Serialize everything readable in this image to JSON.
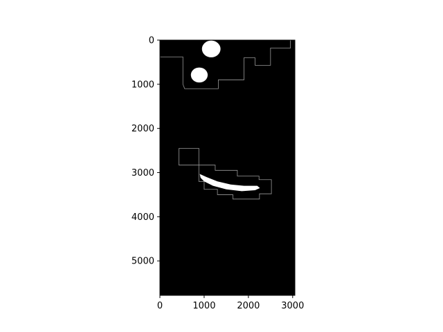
{
  "chart_data": {
    "type": "heatmap",
    "title": "",
    "xlabel": "",
    "ylabel": "",
    "xlim": [
      0,
      3050
    ],
    "ylim": [
      5780,
      0
    ],
    "x_ticks": [
      0,
      1000,
      2000,
      3000
    ],
    "y_ticks": [
      0,
      1000,
      2000,
      3000,
      4000,
      5000
    ],
    "background_color": "#000000",
    "foreground_color": "#ffffff",
    "outline_color": "#9a9a9a",
    "colormap": "gray",
    "blobs": [
      {
        "name": "round-blob-top",
        "cx": 1160,
        "cy": 200,
        "rx": 210,
        "ry": 190
      },
      {
        "name": "small-blob-upper-left",
        "cx": 890,
        "cy": 790,
        "rx": 190,
        "ry": 170
      },
      {
        "name": "elongated-blob",
        "points": [
          [
            900,
            3030
          ],
          [
            1050,
            3100
          ],
          [
            1300,
            3200
          ],
          [
            1600,
            3270
          ],
          [
            1900,
            3300
          ],
          [
            2200,
            3300
          ],
          [
            2260,
            3350
          ],
          [
            2150,
            3400
          ],
          [
            1850,
            3420
          ],
          [
            1500,
            3380
          ],
          [
            1200,
            3300
          ],
          [
            1000,
            3200
          ],
          [
            920,
            3120
          ]
        ]
      }
    ],
    "outlines": [
      {
        "name": "outline-top-region",
        "points": [
          [
            0,
            380
          ],
          [
            520,
            380
          ],
          [
            520,
            1000
          ],
          [
            560,
            1100
          ],
          [
            1320,
            1100
          ],
          [
            1320,
            900
          ],
          [
            1900,
            900
          ],
          [
            1900,
            400
          ],
          [
            2150,
            400
          ],
          [
            2150,
            570
          ],
          [
            2500,
            570
          ],
          [
            2500,
            180
          ],
          [
            2950,
            180
          ],
          [
            2950,
            0
          ]
        ]
      },
      {
        "name": "outline-bottom-region",
        "points": [
          [
            430,
            2450
          ],
          [
            880,
            2450
          ],
          [
            880,
            2830
          ],
          [
            1250,
            2830
          ],
          [
            1250,
            2950
          ],
          [
            1750,
            2950
          ],
          [
            1750,
            3080
          ],
          [
            2240,
            3080
          ],
          [
            2240,
            3160
          ],
          [
            2520,
            3160
          ],
          [
            2520,
            3480
          ],
          [
            2250,
            3480
          ],
          [
            2250,
            3600
          ],
          [
            1650,
            3600
          ],
          [
            1650,
            3500
          ],
          [
            1300,
            3500
          ],
          [
            1300,
            3380
          ],
          [
            1000,
            3380
          ],
          [
            1000,
            3200
          ],
          [
            880,
            3200
          ],
          [
            880,
            2830
          ],
          [
            430,
            2830
          ],
          [
            430,
            2450
          ]
        ]
      }
    ]
  }
}
